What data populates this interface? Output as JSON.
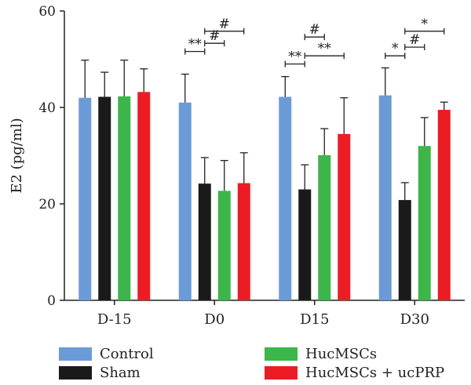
{
  "chart_data": {
    "type": "bar",
    "title": "",
    "xlabel": "",
    "ylabel": "E2 (pg/ml)",
    "ylim": [
      0,
      60
    ],
    "yticks": [
      "0",
      "20",
      "40",
      "60"
    ],
    "categories": [
      "D-15",
      "D0",
      "D15",
      "D30"
    ],
    "series": [
      {
        "name": "Control",
        "color": "#6b9bd6",
        "values": [
          42.0,
          41.0,
          42.2,
          42.5
        ],
        "errors": [
          7.8,
          5.9,
          4.2,
          5.7
        ]
      },
      {
        "name": "Sham",
        "color": "#1a1a1a",
        "values": [
          42.2,
          24.2,
          23.0,
          20.8
        ],
        "errors": [
          5.1,
          5.4,
          5.1,
          3.6
        ]
      },
      {
        "name": "HucMSCs",
        "color": "#3cb54a",
        "values": [
          42.3,
          22.7,
          30.1,
          32.0
        ],
        "errors": [
          7.5,
          6.3,
          5.5,
          5.9
        ]
      },
      {
        "name": "HucMSCs + ucPRP",
        "color": "#ec1c24",
        "values": [
          43.2,
          24.3,
          34.5,
          39.5
        ],
        "errors": [
          4.8,
          6.3,
          7.5,
          1.6
        ]
      }
    ],
    "significance": [
      {
        "label": "**",
        "category": 1,
        "from_series": 0,
        "to_series": 1,
        "level": 51.6
      },
      {
        "label": "#",
        "category": 1,
        "from_series": 1,
        "to_series": 2,
        "level": 53.3
      },
      {
        "label": "#",
        "category": 1,
        "from_series": 1,
        "to_series": 3,
        "level": 55.8
      },
      {
        "label": "**",
        "category": 2,
        "from_series": 0,
        "to_series": 1,
        "level": 49.0
      },
      {
        "label": "**",
        "category": 2,
        "from_series": 1,
        "to_series": 3,
        "level": 50.7
      },
      {
        "label": "#",
        "category": 2,
        "from_series": 1,
        "to_series": 2,
        "level": 54.6
      },
      {
        "label": "*",
        "category": 3,
        "from_series": 0,
        "to_series": 1,
        "level": 50.7
      },
      {
        "label": "#",
        "category": 3,
        "from_series": 1,
        "to_series": 2,
        "level": 52.5
      },
      {
        "label": "*",
        "category": 3,
        "from_series": 1,
        "to_series": 3,
        "level": 55.8
      }
    ],
    "legend_position": "bottom"
  }
}
